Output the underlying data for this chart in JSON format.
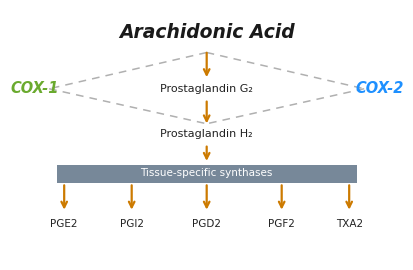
{
  "title": "Arachidonic Acid",
  "title_color": "#1a1a1a",
  "title_fontsize": 13.5,
  "cox1_label": "COX-1",
  "cox1_color": "#6aaa2e",
  "cox2_label": "COX-2",
  "cox2_color": "#1e90ff",
  "pg_g2_label": "Prostaglandin G₂",
  "pg_h2_label": "Prostaglandin H₂",
  "synthase_label": "Tissue-specific synthases",
  "synthase_box_color": "#778899",
  "synthase_text_color": "#ffffff",
  "arrow_color": "#cc7a00",
  "dashed_color": "#b0b0b0",
  "products": [
    "PGE2",
    "PGI2",
    "PGD2",
    "PGF2",
    "TXA2"
  ],
  "background_color": "#ffffff",
  "text_fontsize": 8.0,
  "cox_fontsize": 10.5
}
